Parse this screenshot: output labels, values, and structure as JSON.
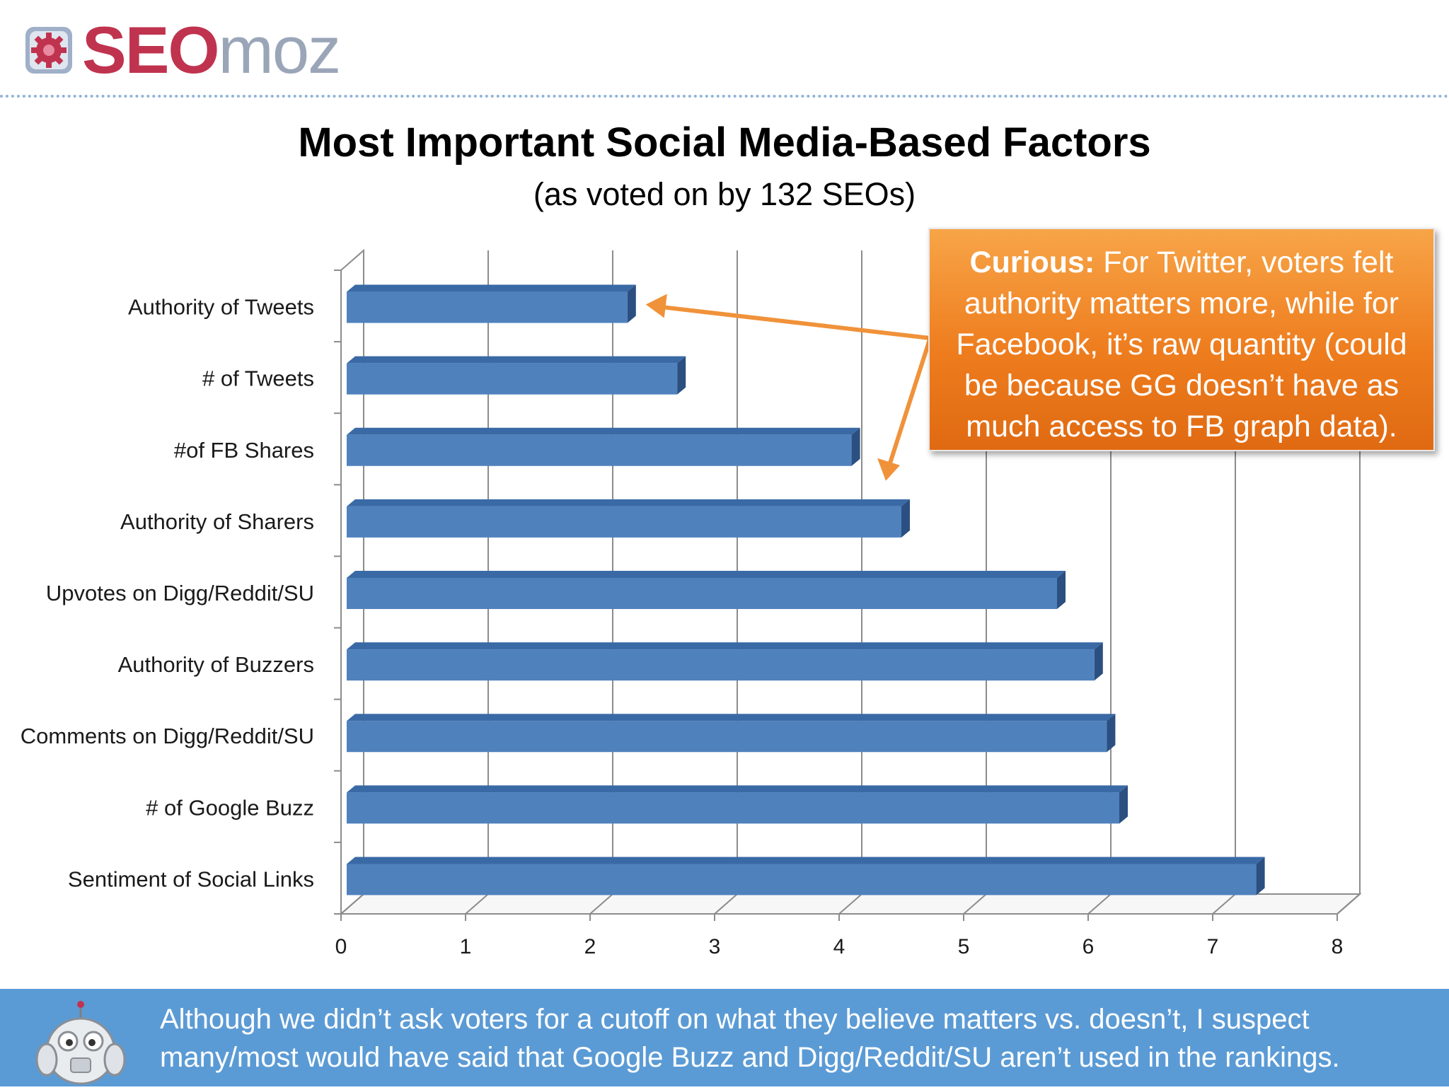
{
  "brand": {
    "logo_seo": "SEO",
    "logo_moz": "moz"
  },
  "header": {
    "title": "Most Important Social Media-Based Factors",
    "subtitle": "(as voted on by 132 SEOs)"
  },
  "callout": {
    "bold": "Curious:",
    "text": " For Twitter, voters felt authority matters more, while for Facebook, it’s raw quantity (could be because GG doesn’t have as much access to FB graph data)."
  },
  "footer": {
    "text": "Although we didn’t ask voters for a cutoff on what they believe matters vs. doesn’t, I suspect many/most would have said that Google Buzz and Digg/Reddit/SU aren’t used in the rankings."
  },
  "colors": {
    "bar": "#4f81bd",
    "callout": "#f08a24",
    "footer": "#5b9bd5",
    "logo_seo": "#c0334f",
    "logo_moz": "#9aa6b8"
  },
  "chart_data": {
    "type": "bar",
    "orientation": "horizontal",
    "categories": [
      "Authority of Tweets",
      "# of Tweets",
      "#of FB Shares",
      "Authority of Sharers",
      "Upvotes on Digg/Reddit/SU",
      "Authority of Buzzers",
      "Comments on Digg/Reddit/SU",
      "# of Google Buzz",
      "Sentiment of Social Links"
    ],
    "values": [
      2.3,
      2.7,
      4.1,
      4.5,
      5.75,
      6.05,
      6.15,
      6.25,
      7.35
    ],
    "xlim": [
      0,
      8
    ],
    "xticks": [
      0,
      1,
      2,
      3,
      4,
      5,
      6,
      7,
      8
    ],
    "grid": true,
    "style": "3d"
  }
}
